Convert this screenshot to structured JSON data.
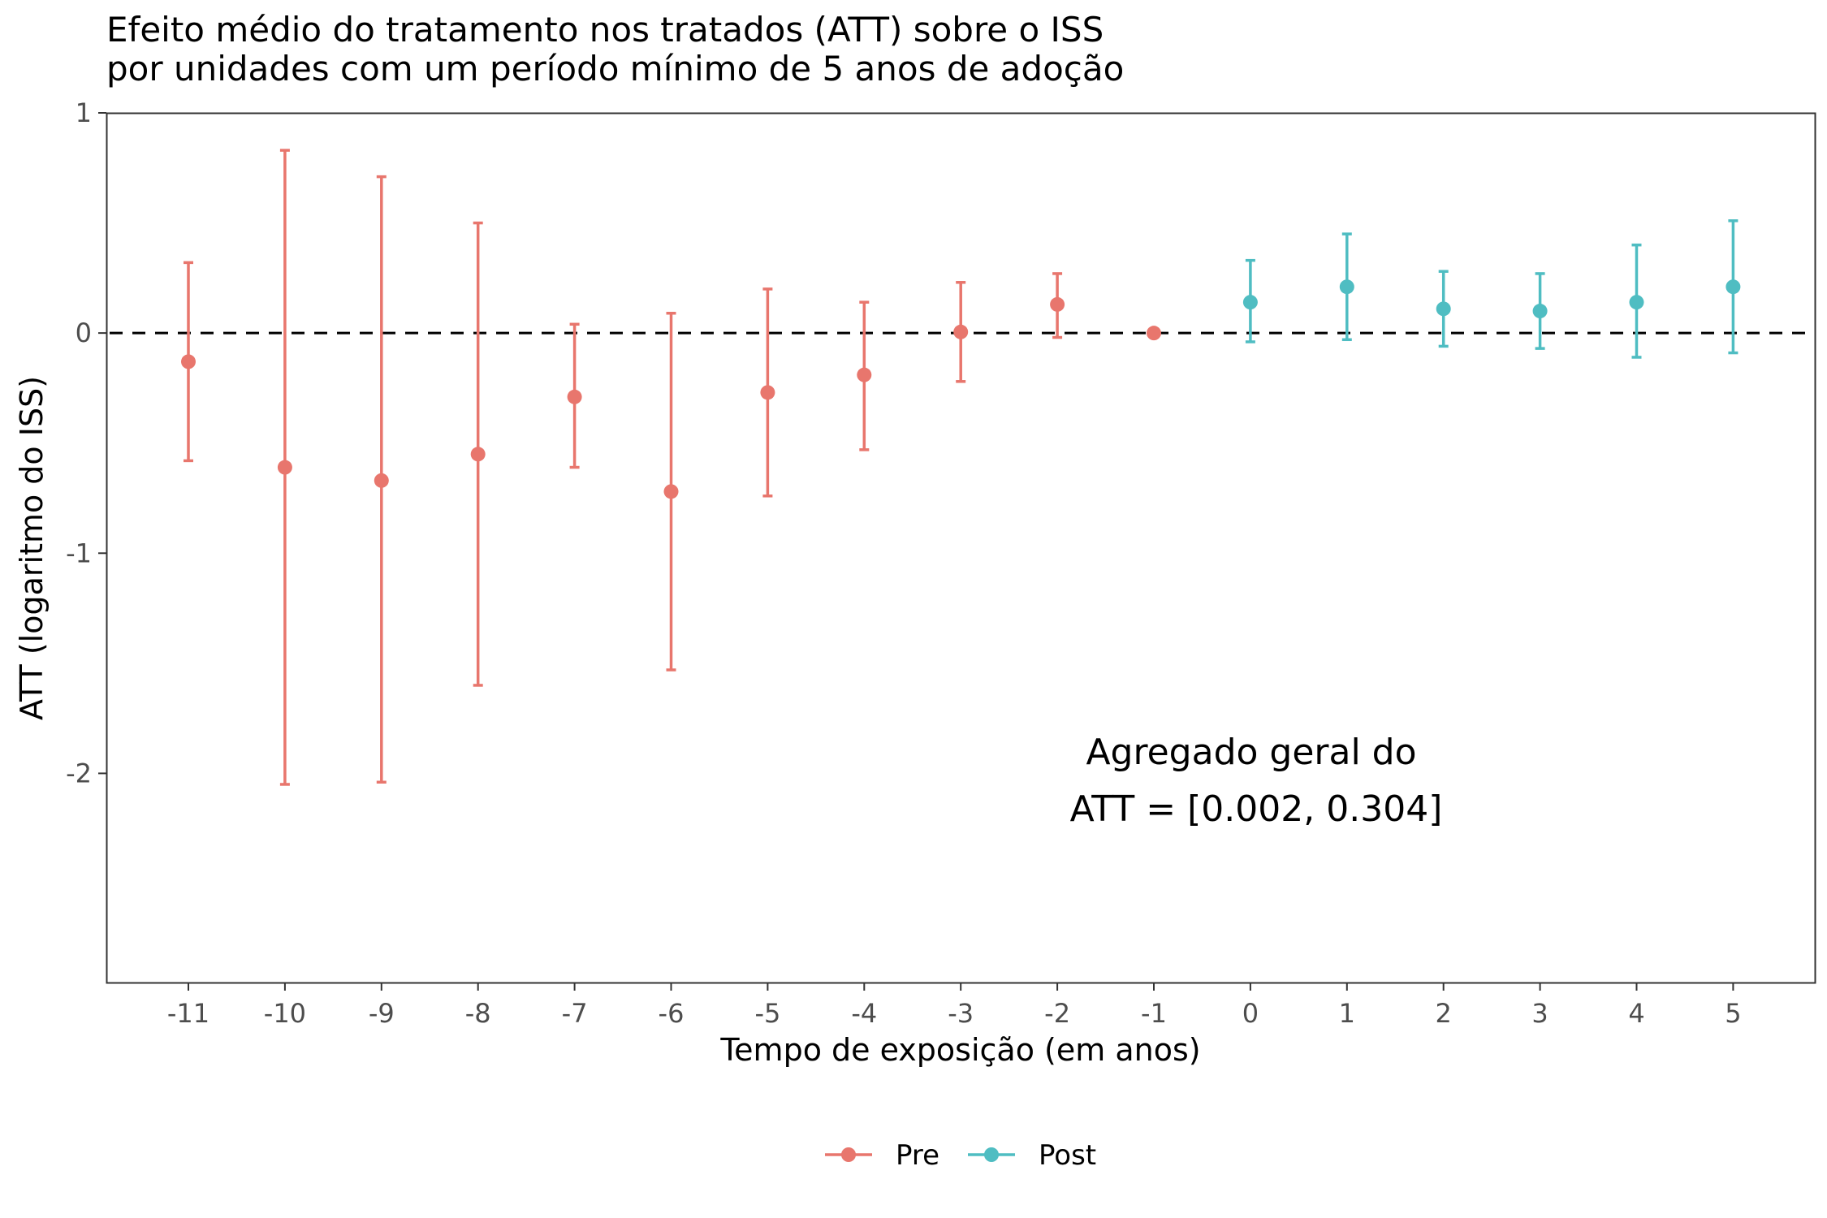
{
  "chart_data": {
    "type": "scatter",
    "title": "Efeito médio do tratamento nos tratados (ATT) sobre o ISS",
    "subtitle": "por unidades com um período mínimo de 5 anos de adoção",
    "xlabel": "Tempo de exposição (em anos)",
    "ylabel": "ATT (logaritmo do ISS)",
    "ylim": [
      -2.95,
      1.0
    ],
    "yticks": [
      1,
      0,
      -1,
      -2
    ],
    "ytick_labels": [
      "1",
      "0",
      "-1",
      "-2"
    ],
    "x_categories": [
      "-11",
      "-10",
      "-9",
      "-8",
      "-7",
      "-6",
      "-5",
      "-4",
      "-3",
      "-2",
      "-1",
      "0",
      "1",
      "2",
      "3",
      "4",
      "5"
    ],
    "reference_line": 0,
    "grid": false,
    "legend_position": "bottom",
    "annotation": [
      "Agregado geral do",
      "ATT =  [0.002, 0.304]"
    ],
    "series": [
      {
        "name": "Pre",
        "color": "#E8766D",
        "points": [
          {
            "x": -11,
            "y": -0.13,
            "lo": -0.58,
            "hi": 0.32
          },
          {
            "x": -10,
            "y": -0.61,
            "lo": -2.05,
            "hi": 0.83
          },
          {
            "x": -9,
            "y": -0.67,
            "lo": -2.04,
            "hi": 0.71
          },
          {
            "x": -8,
            "y": -0.55,
            "lo": -1.6,
            "hi": 0.5
          },
          {
            "x": -7,
            "y": -0.29,
            "lo": -0.61,
            "hi": 0.04
          },
          {
            "x": -6,
            "y": -0.72,
            "lo": -1.53,
            "hi": 0.09
          },
          {
            "x": -5,
            "y": -0.27,
            "lo": -0.74,
            "hi": 0.2
          },
          {
            "x": -4,
            "y": -0.19,
            "lo": -0.53,
            "hi": 0.14
          },
          {
            "x": -3,
            "y": 0.005,
            "lo": -0.22,
            "hi": 0.23
          },
          {
            "x": -2,
            "y": 0.13,
            "lo": -0.02,
            "hi": 0.27
          },
          {
            "x": -1,
            "y": 0.0,
            "lo": 0.0,
            "hi": 0.0
          }
        ]
      },
      {
        "name": "Post",
        "color": "#4FBDC2",
        "points": [
          {
            "x": 0,
            "y": 0.14,
            "lo": -0.04,
            "hi": 0.33
          },
          {
            "x": 1,
            "y": 0.21,
            "lo": -0.03,
            "hi": 0.45
          },
          {
            "x": 2,
            "y": 0.11,
            "lo": -0.06,
            "hi": 0.28
          },
          {
            "x": 3,
            "y": 0.1,
            "lo": -0.07,
            "hi": 0.27
          },
          {
            "x": 4,
            "y": 0.14,
            "lo": -0.11,
            "hi": 0.4
          },
          {
            "x": 5,
            "y": 0.21,
            "lo": -0.09,
            "hi": 0.51
          }
        ]
      }
    ]
  }
}
